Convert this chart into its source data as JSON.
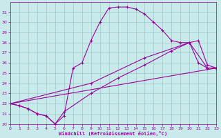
{
  "xlabel": "Windchill (Refroidissement éolien,°C)",
  "xlim": [
    0,
    23
  ],
  "ylim": [
    20,
    32
  ],
  "yticks": [
    20,
    21,
    22,
    23,
    24,
    25,
    26,
    27,
    28,
    29,
    30,
    31
  ],
  "xticks": [
    0,
    1,
    2,
    3,
    4,
    5,
    6,
    7,
    8,
    9,
    10,
    11,
    12,
    13,
    14,
    15,
    16,
    17,
    18,
    19,
    20,
    21,
    22,
    23
  ],
  "bg_color": "#c8eaea",
  "grid_color": "#9ec8c8",
  "line_color": "#990099",
  "line1_x": [
    0,
    1,
    2,
    3,
    4,
    5,
    6,
    7,
    8,
    9,
    10,
    11,
    12,
    13,
    14,
    15,
    16,
    17,
    18,
    19,
    20,
    21,
    22,
    23
  ],
  "line1_y": [
    22.0,
    21.8,
    21.5,
    21.0,
    20.8,
    20.0,
    20.8,
    25.5,
    26.0,
    28.2,
    30.0,
    31.4,
    31.5,
    31.5,
    31.3,
    30.8,
    30.0,
    29.2,
    28.2,
    28.0,
    28.0,
    26.0,
    25.5,
    25.5
  ],
  "line2_x": [
    0,
    1,
    2,
    3,
    4,
    5,
    6,
    9,
    12,
    15,
    18,
    20,
    21,
    22,
    23
  ],
  "line2_y": [
    22.0,
    21.8,
    21.5,
    21.0,
    20.8,
    20.0,
    21.2,
    23.0,
    24.5,
    25.8,
    27.2,
    28.0,
    28.2,
    25.8,
    25.5
  ],
  "line3_x": [
    0,
    9,
    15,
    20,
    22,
    23
  ],
  "line3_y": [
    22.0,
    24.0,
    26.5,
    28.0,
    25.5,
    25.5
  ],
  "line4_x": [
    0,
    23
  ],
  "line4_y": [
    22.0,
    25.5
  ]
}
